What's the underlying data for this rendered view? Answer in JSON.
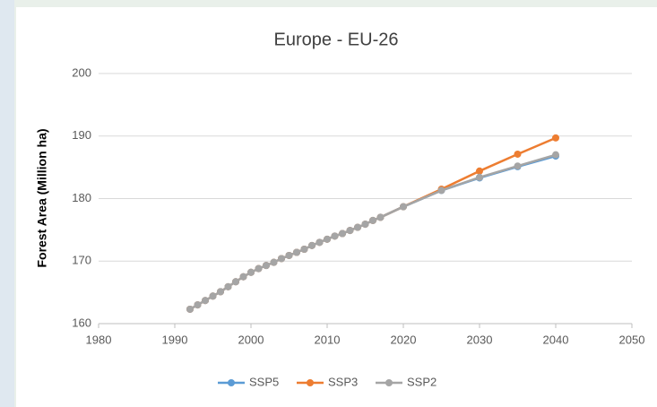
{
  "chart_data": {
    "type": "line",
    "title": "Europe - EU-26",
    "y_label": "Forest Area (Million ha)",
    "x": [
      1992,
      1993,
      1994,
      1995,
      1996,
      1997,
      1998,
      1999,
      2000,
      2001,
      2002,
      2003,
      2004,
      2005,
      2006,
      2007,
      2008,
      2009,
      2010,
      2011,
      2012,
      2013,
      2014,
      2015,
      2016,
      2017,
      2020,
      2025,
      2030,
      2035,
      2040
    ],
    "series": [
      {
        "name": "SSP5",
        "color": "#5b9bd5",
        "values": [
          162.3,
          163.0,
          163.7,
          164.4,
          165.1,
          165.9,
          166.7,
          167.5,
          168.2,
          168.8,
          169.3,
          169.8,
          170.4,
          170.9,
          171.4,
          171.9,
          172.5,
          173.0,
          173.5,
          174.0,
          174.4,
          174.9,
          175.4,
          175.9,
          176.5,
          177.0,
          178.7,
          181.3,
          183.3,
          185.1,
          186.8
        ]
      },
      {
        "name": "SSP3",
        "color": "#ed7d31",
        "values": [
          162.3,
          163.0,
          163.7,
          164.4,
          165.1,
          165.9,
          166.7,
          167.5,
          168.2,
          168.8,
          169.3,
          169.8,
          170.4,
          170.9,
          171.4,
          171.9,
          172.5,
          173.0,
          173.5,
          174.0,
          174.4,
          174.9,
          175.4,
          175.9,
          176.5,
          177.0,
          178.7,
          181.5,
          184.4,
          187.1,
          189.7
        ]
      },
      {
        "name": "SSP2",
        "color": "#a5a5a5",
        "values": [
          162.3,
          163.0,
          163.7,
          164.4,
          165.1,
          165.9,
          166.7,
          167.5,
          168.2,
          168.8,
          169.3,
          169.8,
          170.4,
          170.9,
          171.4,
          171.9,
          172.5,
          173.0,
          173.5,
          174.0,
          174.4,
          174.9,
          175.4,
          175.9,
          176.5,
          177.0,
          178.7,
          181.3,
          183.4,
          185.2,
          187.0
        ]
      }
    ],
    "xlim": [
      1980,
      2050
    ],
    "xticks": [
      1980,
      1990,
      2000,
      2010,
      2020,
      2030,
      2040,
      2050
    ],
    "ylim": [
      160,
      200
    ],
    "yticks": [
      160,
      170,
      180,
      190,
      200
    ],
    "grid": true,
    "legend": "bottom"
  }
}
